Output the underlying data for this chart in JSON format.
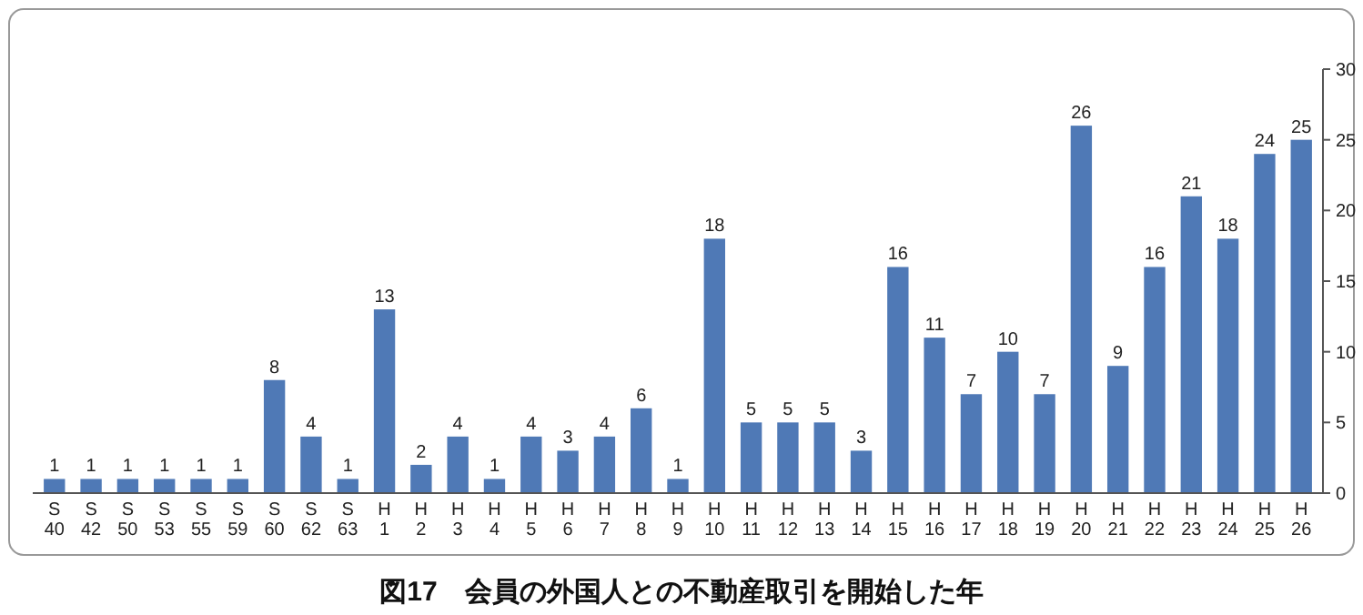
{
  "chart_data": {
    "type": "bar",
    "title": "図17　会員の外国人との不動産取引を開始した年",
    "categories": [
      "S 40",
      "S 42",
      "S 50",
      "S 53",
      "S 55",
      "S 59",
      "S 60",
      "S 62",
      "S 63",
      "H 1",
      "H 2",
      "H 3",
      "H 4",
      "H 5",
      "H 6",
      "H 7",
      "H 8",
      "H 9",
      "H 10",
      "H 11",
      "H 12",
      "H 13",
      "H 14",
      "H 15",
      "H 16",
      "H 17",
      "H 18",
      "H 19",
      "H 20",
      "H 21",
      "H 22",
      "H 23",
      "H 24",
      "H 25",
      "H 26"
    ],
    "values": [
      1,
      1,
      1,
      1,
      1,
      1,
      8,
      4,
      1,
      13,
      2,
      4,
      1,
      4,
      3,
      4,
      6,
      1,
      18,
      5,
      5,
      5,
      3,
      16,
      11,
      7,
      10,
      7,
      26,
      9,
      16,
      21,
      18,
      24,
      25
    ],
    "color": "#4f79b6",
    "ylim": [
      0,
      30
    ],
    "yticks": [
      0,
      5,
      10,
      15,
      20,
      25,
      30
    ],
    "data_labels": true
  }
}
